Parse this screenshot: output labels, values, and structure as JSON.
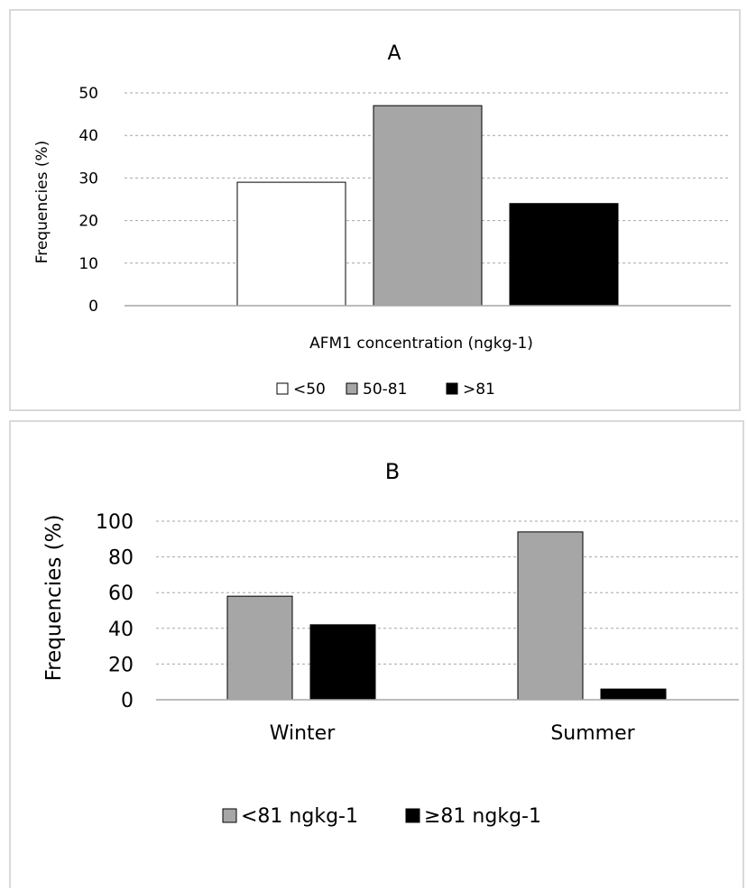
{
  "colors": {
    "white": "#ffffff",
    "gray": "#a6a6a6",
    "black": "#000000",
    "grid": "#a6a6a6",
    "edge": "#000000"
  },
  "chart_data": [
    {
      "type": "bar",
      "title": "A",
      "xlabel": "AFM1 concentration (ngkg-1)",
      "ylabel": "Frequencies (%)",
      "ylim": [
        0,
        50
      ],
      "yticks": [
        "0",
        "10",
        "20",
        "30",
        "40",
        "50"
      ],
      "grid": true,
      "legend_position": "bottom",
      "series": [
        {
          "name": "<50",
          "color": "white",
          "value": 29
        },
        {
          "name": "50-81",
          "color": "gray",
          "value": 47
        },
        {
          "name": ">81",
          "color": "black",
          "value": 24
        }
      ]
    },
    {
      "type": "bar",
      "title": "B",
      "xlabel": "",
      "ylabel": "Frequencies (%)",
      "ylim": [
        0,
        100
      ],
      "yticks": [
        "0",
        "20",
        "40",
        "60",
        "80",
        "100"
      ],
      "grid": true,
      "legend_position": "bottom",
      "categories": [
        "Winter",
        "Summer"
      ],
      "series": [
        {
          "name": "<81 ngkg-1",
          "color": "gray",
          "values": [
            58,
            94
          ]
        },
        {
          "name": "≥81 ngkg-1",
          "color": "black",
          "values": [
            42,
            6
          ]
        }
      ]
    }
  ]
}
